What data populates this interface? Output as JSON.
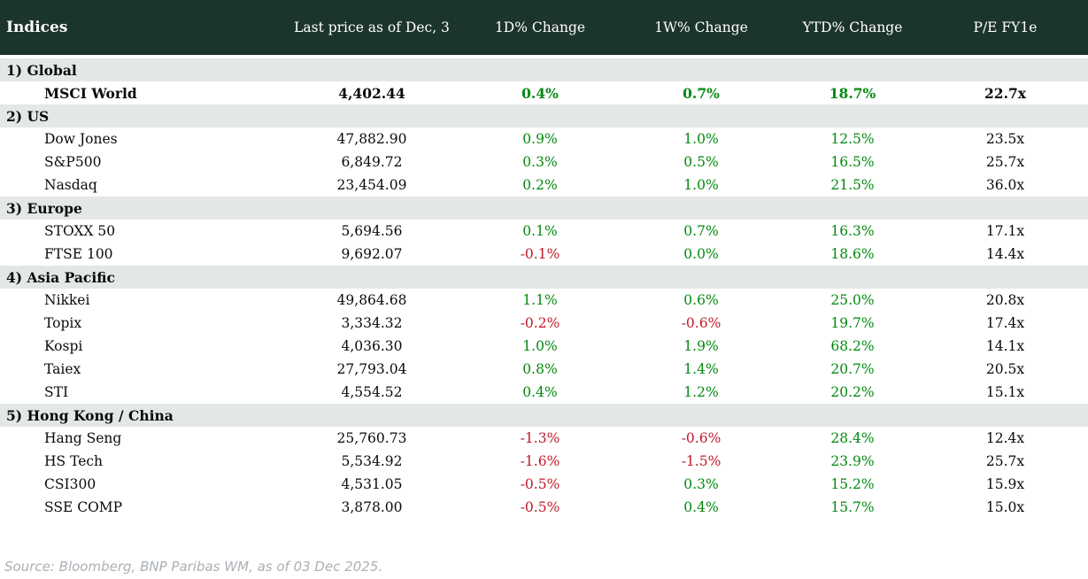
{
  "chart_data": {
    "type": "table",
    "title": "Indices",
    "columns": [
      "Indices",
      "Last price as of Dec, 3",
      "1D% Change",
      "1W% Change",
      "YTD% Change",
      "P/E FY1e"
    ],
    "sections": [
      {
        "label": "1) Global",
        "rows": [
          {
            "name": "MSCI World",
            "emphasis": true,
            "last_price": "4,402.44",
            "d1_change": "0.4%",
            "w1_change": "0.7%",
            "ytd_change": "18.7%",
            "pe_fy1e": "22.7x"
          }
        ]
      },
      {
        "label": "2) US",
        "rows": [
          {
            "name": "Dow Jones",
            "last_price": "47,882.90",
            "d1_change": "0.9%",
            "w1_change": "1.0%",
            "ytd_change": "12.5%",
            "pe_fy1e": "23.5x"
          },
          {
            "name": "S&P500",
            "last_price": "6,849.72",
            "d1_change": "0.3%",
            "w1_change": "0.5%",
            "ytd_change": "16.5%",
            "pe_fy1e": "25.7x"
          },
          {
            "name": "Nasdaq",
            "last_price": "23,454.09",
            "d1_change": "0.2%",
            "w1_change": "1.0%",
            "ytd_change": "21.5%",
            "pe_fy1e": "36.0x"
          }
        ]
      },
      {
        "label": "3) Europe",
        "rows": [
          {
            "name": "STOXX 50",
            "last_price": "5,694.56",
            "d1_change": "0.1%",
            "w1_change": "0.7%",
            "ytd_change": "16.3%",
            "pe_fy1e": "17.1x"
          },
          {
            "name": "FTSE 100",
            "last_price": "9,692.07",
            "d1_change": "-0.1%",
            "w1_change": "0.0%",
            "ytd_change": "18.6%",
            "pe_fy1e": "14.4x"
          }
        ]
      },
      {
        "label": "4) Asia Pacific",
        "rows": [
          {
            "name": "Nikkei",
            "last_price": "49,864.68",
            "d1_change": "1.1%",
            "w1_change": "0.6%",
            "ytd_change": "25.0%",
            "pe_fy1e": "20.8x"
          },
          {
            "name": "Topix",
            "last_price": "3,334.32",
            "d1_change": "-0.2%",
            "w1_change": "-0.6%",
            "ytd_change": "19.7%",
            "pe_fy1e": "17.4x"
          },
          {
            "name": "Kospi",
            "last_price": "4,036.30",
            "d1_change": "1.0%",
            "w1_change": "1.9%",
            "ytd_change": "68.2%",
            "pe_fy1e": "14.1x"
          },
          {
            "name": "Taiex",
            "last_price": "27,793.04",
            "d1_change": "0.8%",
            "w1_change": "1.4%",
            "ytd_change": "20.7%",
            "pe_fy1e": "20.5x"
          },
          {
            "name": "STI",
            "last_price": "4,554.52",
            "d1_change": "0.4%",
            "w1_change": "1.2%",
            "ytd_change": "20.2%",
            "pe_fy1e": "15.1x"
          }
        ]
      },
      {
        "label": "5) Hong Kong / China",
        "rows": [
          {
            "name": "Hang Seng",
            "last_price": "25,760.73",
            "d1_change": "-1.3%",
            "w1_change": "-0.6%",
            "ytd_change": "28.4%",
            "pe_fy1e": "12.4x"
          },
          {
            "name": "HS Tech",
            "last_price": "5,534.92",
            "d1_change": "-1.6%",
            "w1_change": "-1.5%",
            "ytd_change": "23.9%",
            "pe_fy1e": "25.7x"
          },
          {
            "name": "CSI300",
            "last_price": "4,531.05",
            "d1_change": "-0.5%",
            "w1_change": "0.3%",
            "ytd_change": "15.2%",
            "pe_fy1e": "15.9x"
          },
          {
            "name": "SSE COMP",
            "last_price": "3,878.00",
            "d1_change": "-0.5%",
            "w1_change": "0.4%",
            "ytd_change": "15.7%",
            "pe_fy1e": "15.0x"
          }
        ]
      }
    ],
    "layout": {
      "positive_change_color_rule": "values without leading minus are green, with minus are red",
      "numeric_columns_alignment": "center"
    }
  },
  "colors": {
    "header_bg": "#1c342e",
    "section_row_bg": "#e3e8e4",
    "positive": "#028a0f",
    "negative": "#c11a2b",
    "footer_text": "#aab0b6"
  },
  "footer": {
    "source_note": "Source: Bloomberg, BNP Paribas WM, as of 03 Dec 2025."
  }
}
